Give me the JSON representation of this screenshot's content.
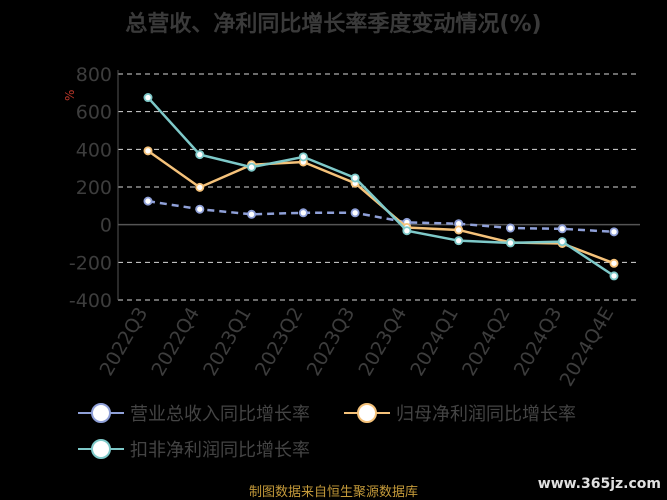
{
  "title": "总营收、净利同比增长率季度变动情况(%)",
  "unit_mark": "%",
  "source": "制图数据来自恒生聚源数据库",
  "watermark": "www.365jz.com",
  "chart_data": {
    "type": "line",
    "categories": [
      "2022Q3",
      "2022Q4",
      "2023Q1",
      "2023Q2",
      "2023Q3",
      "2023Q4",
      "2024Q1",
      "2024Q2",
      "2024Q3",
      "2024Q4E"
    ],
    "ylim": [
      -400,
      800
    ],
    "yticks": [
      800,
      600,
      400,
      200,
      0,
      -200,
      -400
    ],
    "series": [
      {
        "name": "营业总收入同比增长率",
        "color": "#8fa0d8",
        "dashed": true,
        "values": [
          125,
          82,
          55,
          63,
          63,
          12,
          5,
          -18,
          -22,
          -38
        ]
      },
      {
        "name": "归母净利润同比增长率",
        "color": "#f5c27a",
        "dashed": false,
        "values": [
          392,
          198,
          318,
          333,
          220,
          -15,
          -28,
          -95,
          -100,
          -205
        ]
      },
      {
        "name": "扣非净利润同比增长率",
        "color": "#7ec9c9",
        "dashed": false,
        "values": [
          675,
          372,
          305,
          360,
          248,
          -32,
          -85,
          -97,
          -90,
          -272
        ]
      }
    ]
  }
}
